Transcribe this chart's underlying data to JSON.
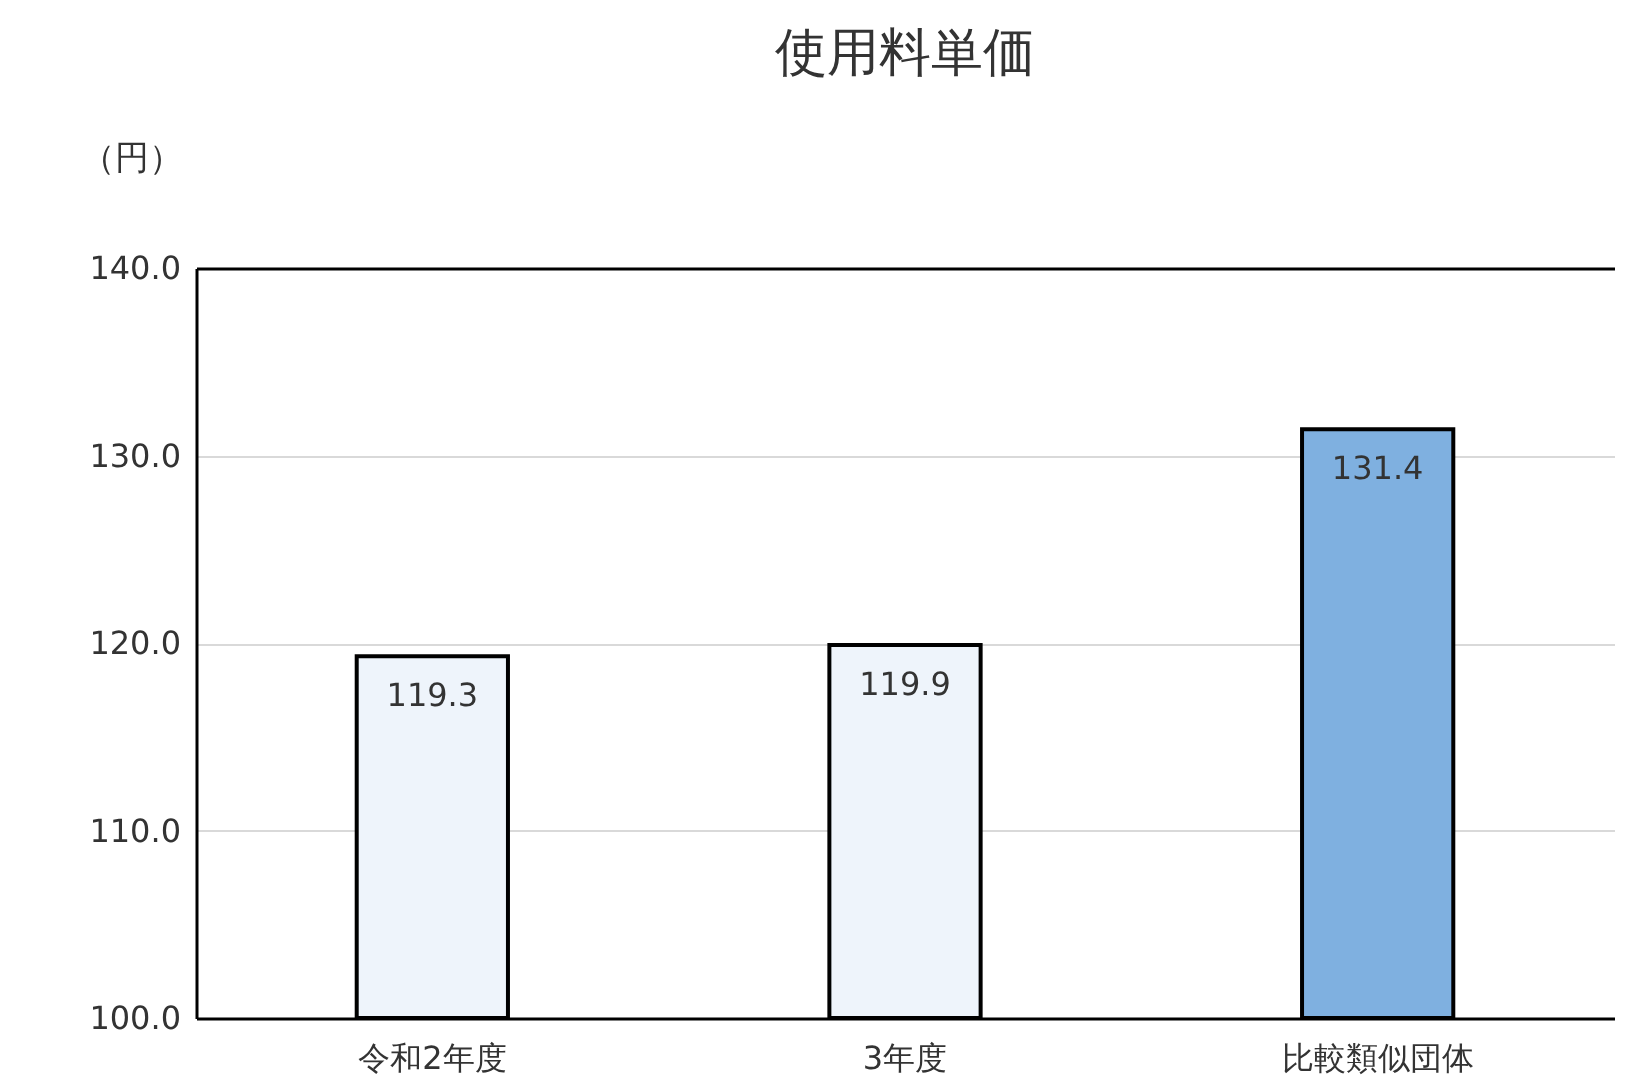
{
  "chart_data": {
    "type": "bar",
    "title": "使用料単価",
    "ylabel": "（円）",
    "categories": [
      "令和2年度",
      "3年度",
      "比較類似団体"
    ],
    "values": [
      119.3,
      119.9,
      131.4
    ],
    "colors": [
      "#eef4fb",
      "#eef4fb",
      "#7fb0e0"
    ],
    "ylim": [
      100,
      140
    ],
    "yticks": [
      {
        "value": 100,
        "label": "100.0"
      },
      {
        "value": 110,
        "label": "110.0"
      },
      {
        "value": 120,
        "label": "120.0"
      },
      {
        "value": 130,
        "label": "130.0"
      },
      {
        "value": 140,
        "label": "140.0"
      }
    ],
    "grid": "y",
    "data_labels": true
  }
}
